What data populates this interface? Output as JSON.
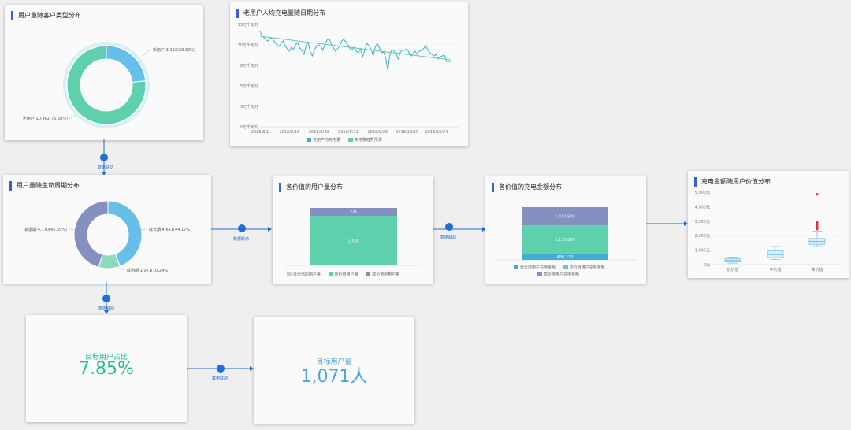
{
  "colors": {
    "green": "#5fd0ad",
    "blue": "#67bfe9",
    "purple": "#8490c0",
    "accent": "#3b5fd6",
    "link": "#1f6fd6",
    "outlier": "#e03434",
    "kpi_green": "#2fb996",
    "kpi_blue": "#4aa6dc"
  },
  "link_label": "数据联动",
  "donut1": {
    "title": "用户量随客户类型分布",
    "new_label": "新用户:3,182(23.32%)",
    "old_label": "老用户:10,462(76.68%)"
  },
  "line": {
    "title": "老用户人均充电量随日期分布",
    "legend_avg": "老用户均充电量",
    "legend_trend": "充电量趋势预测",
    "y_ticks": [
      "13万千瓦时",
      "10万千瓦时",
      "8万千瓦时",
      "5万千瓦时",
      "3万千瓦时",
      "0万千瓦时"
    ],
    "x_ticks": [
      "2018/8/1",
      "2018/8/15",
      "2018/8/29",
      "2018/9/12",
      "2018/9/26",
      "2018/10/10",
      "2018/10/24"
    ]
  },
  "donut2": {
    "title": "用户量随生命周期分布",
    "growth_label": "成长期:4,621(44.17%)",
    "mature_label": "成熟期:1,071(10.24%)",
    "decline_label": "衰退期:4,770(45.59%)"
  },
  "bar1": {
    "title": "各价值的用户量分布",
    "top_label": "5条",
    "mid_label": "1,000",
    "legend": [
      "低价值的用户量",
      "中价值用户量",
      "高价值的用户量"
    ]
  },
  "bar2": {
    "title": "各价值的充电金额分布",
    "top_label": "1,414,548",
    "mid_label": "2,151,000",
    "bot_label": "488,213",
    "legend": [
      "低价值用户充电金额",
      "中价值用户充电金额",
      "高价值用户充电金额"
    ]
  },
  "box": {
    "title": "充电金额随用户价值分布",
    "y_ticks": [
      "5,000元",
      "4,000元",
      "3,000元",
      "2,000元",
      "1,000元",
      "0元"
    ],
    "categories": [
      "低价值",
      "中价值",
      "高价值"
    ]
  },
  "kpi1": {
    "title": "目标用户占比",
    "value": "7.85%"
  },
  "kpi2": {
    "title": "目标用户量",
    "value": "1,071人"
  },
  "chart_data": [
    {
      "type": "pie",
      "title": "用户量随客户类型分布",
      "categories": [
        "新用户",
        "老用户"
      ],
      "values": [
        3182,
        10462
      ],
      "percent": [
        23.32,
        76.68
      ]
    },
    {
      "type": "line",
      "title": "老用户人均充电量随日期分布",
      "ylim": [
        0,
        13
      ],
      "x_range": [
        "2018/8/1",
        "2018/10/31"
      ],
      "series": [
        {
          "name": "老用户均充电量",
          "values": [
            12.2,
            11.5,
            11.3,
            11.0,
            10.9,
            11.3,
            11.1,
            10.8,
            10.4,
            10.2,
            10.6,
            10.9,
            10.3,
            9.9,
            9.6,
            10.1,
            9.8,
            10.4,
            10.7,
            10.0,
            9.7,
            9.2,
            10.3,
            10.7,
            9.5,
            9.0,
            9.8,
            10.2,
            10.4,
            10.2,
            9.7,
            10.5,
            11.0,
            11.2,
            10.5,
            10.1,
            9.6,
            9.9,
            10.3,
            10.9,
            11.1,
            10.8,
            10.4,
            9.9,
            9.8,
            10.1,
            9.6,
            9.4,
            9.9,
            8.9,
            9.7,
            10.6,
            10.3,
            9.9,
            9.0,
            10.1,
            10.6,
            10.0,
            9.4,
            9.5,
            8.7,
            7.2,
            9.2,
            9.8,
            9.6,
            9.2,
            8.6,
            9.5,
            9.8,
            9.7,
            9.9,
            9.5,
            8.9,
            9.3,
            9.6,
            9.2,
            9.6,
            9.7,
            9.9,
            10.3,
            9.8,
            9.4,
            9.2,
            9.0,
            9.2,
            8.6,
            8.9,
            9.0,
            9.1,
            8.3,
            8.3,
            8.3
          ]
        },
        {
          "name": "充电量趋势预测",
          "values": [
            11.5,
            8.5
          ]
        }
      ]
    },
    {
      "type": "pie",
      "title": "用户量随生命周期分布",
      "categories": [
        "成长期",
        "成熟期",
        "衰退期"
      ],
      "values": [
        4621,
        1071,
        4770
      ],
      "percent": [
        44.17,
        10.24,
        45.59
      ]
    },
    {
      "type": "bar",
      "title": "各价值的用户量分布",
      "categories": [
        "总计"
      ],
      "series": [
        {
          "name": "低价值的用户量",
          "values": [
            0
          ]
        },
        {
          "name": "中价值用户量",
          "values": [
            1000
          ]
        },
        {
          "name": "高价值的用户量",
          "values": [
            5
          ]
        }
      ]
    },
    {
      "type": "bar",
      "title": "各价值的充电金额分布",
      "categories": [
        "总计"
      ],
      "series": [
        {
          "name": "低价值用户充电金额",
          "values": [
            488213
          ]
        },
        {
          "name": "中价值用户充电金额",
          "values": [
            2151000
          ]
        },
        {
          "name": "高价值用户充电金额",
          "values": [
            1414548
          ]
        }
      ]
    },
    {
      "type": "box",
      "title": "充电金额随用户价值分布",
      "categories": [
        "低价值",
        "中价值",
        "高价值"
      ],
      "ylim": [
        0,
        5000
      ],
      "boxes": [
        {
          "min": 100,
          "q1": 180,
          "median": 280,
          "q3": 420,
          "max": 520
        },
        {
          "min": 350,
          "q1": 480,
          "median": 700,
          "q3": 950,
          "max": 1250
        },
        {
          "min": 1250,
          "q1": 1400,
          "median": 1600,
          "q3": 1800,
          "max": 2300,
          "outliers": [
            2450,
            2600,
            2750,
            2900,
            4850
          ]
        }
      ]
    }
  ]
}
